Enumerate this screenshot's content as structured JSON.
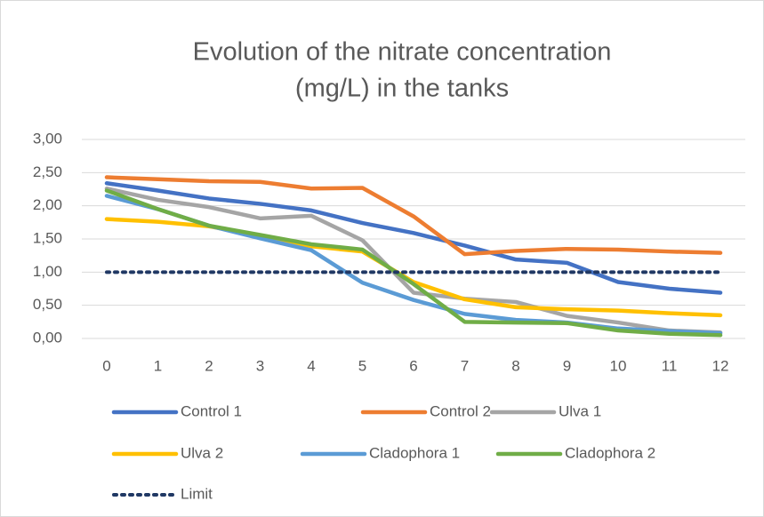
{
  "chart_data": {
    "type": "line",
    "title": [
      "Evolution of the nitrate concentration",
      "(mg/L) in the tanks"
    ],
    "categories": [
      0,
      1,
      2,
      3,
      4,
      5,
      6,
      7,
      8,
      9,
      10,
      11,
      12
    ],
    "ylim": [
      0,
      3
    ],
    "yticks": [
      {
        "value": 0,
        "label": "0,00"
      },
      {
        "value": 0.5,
        "label": "0,50"
      },
      {
        "value": 1,
        "label": "1,00"
      },
      {
        "value": 1.5,
        "label": "1,50"
      },
      {
        "value": 2,
        "label": "2,00"
      },
      {
        "value": 2.5,
        "label": "2,50"
      },
      {
        "value": 3,
        "label": "3,00"
      }
    ],
    "grid": true,
    "legend": "bottom",
    "series": [
      {
        "name": "Control 1",
        "color": "#4472c4",
        "values": [
          2.34,
          2.23,
          2.11,
          2.03,
          1.93,
          1.74,
          1.59,
          1.4,
          1.19,
          1.14,
          0.85,
          0.75,
          0.69
        ]
      },
      {
        "name": "Control 2",
        "color": "#ed7d31",
        "values": [
          2.43,
          2.4,
          2.37,
          2.36,
          2.26,
          2.27,
          1.84,
          1.27,
          1.32,
          1.35,
          1.34,
          1.31,
          1.29
        ]
      },
      {
        "name": "Ulva 1",
        "color": "#a5a5a5",
        "values": [
          2.26,
          2.09,
          1.98,
          1.81,
          1.85,
          1.48,
          0.69,
          0.6,
          0.55,
          0.34,
          0.24,
          0.12,
          0.09
        ]
      },
      {
        "name": "Ulva 2",
        "color": "#ffc000",
        "values": [
          1.8,
          1.76,
          1.69,
          1.55,
          1.39,
          1.31,
          0.85,
          0.59,
          0.47,
          0.44,
          0.42,
          0.38,
          0.35
        ]
      },
      {
        "name": "Cladophora 1",
        "color": "#5b9bd5",
        "values": [
          2.15,
          1.95,
          1.7,
          1.51,
          1.33,
          0.84,
          0.58,
          0.37,
          0.28,
          0.24,
          0.15,
          0.11,
          0.08
        ]
      },
      {
        "name": "Cladophora 2",
        "color": "#70ad47",
        "values": [
          2.23,
          1.95,
          1.7,
          1.56,
          1.42,
          1.34,
          0.82,
          0.25,
          0.24,
          0.23,
          0.12,
          0.07,
          0.05
        ]
      },
      {
        "name": "Limit",
        "color": "#203864",
        "style": "dotted",
        "values": [
          1,
          1,
          1,
          1,
          1,
          1,
          1,
          1,
          1,
          1,
          1,
          1,
          1
        ]
      }
    ]
  }
}
